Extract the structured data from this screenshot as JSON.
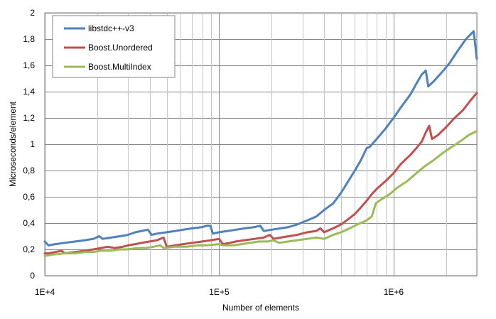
{
  "chart_data": {
    "type": "line",
    "xlabel": "Number of elements",
    "ylabel": "Microseconds/element",
    "xscale": "log",
    "xlim": [
      10000,
      3000000
    ],
    "ylim": [
      0,
      2
    ],
    "x_tick_labels": [
      {
        "value": 10000,
        "label": "1E+4"
      },
      {
        "value": 100000,
        "label": "1E+5"
      },
      {
        "value": 1000000,
        "label": "1E+6"
      }
    ],
    "y_tick_labels": [
      {
        "value": 0,
        "label": "0"
      },
      {
        "value": 0.2,
        "label": "0,2"
      },
      {
        "value": 0.4,
        "label": "0,4"
      },
      {
        "value": 0.6,
        "label": "0,6"
      },
      {
        "value": 0.8,
        "label": "0,8"
      },
      {
        "value": 1.0,
        "label": "1"
      },
      {
        "value": 1.2,
        "label": "1,2"
      },
      {
        "value": 1.4,
        "label": "1,4"
      },
      {
        "value": 1.6,
        "label": "1,6"
      },
      {
        "value": 1.8,
        "label": "1,8"
      },
      {
        "value": 2.0,
        "label": "2"
      }
    ],
    "grid": true,
    "legend_position": "top-left",
    "series": [
      {
        "name": "libstdc++-v3",
        "color": "#4f81bd",
        "points": [
          [
            10000,
            0.26
          ],
          [
            10500,
            0.23
          ],
          [
            11500,
            0.24
          ],
          [
            13000,
            0.25
          ],
          [
            15000,
            0.26
          ],
          [
            17000,
            0.27
          ],
          [
            19000,
            0.28
          ],
          [
            20500,
            0.3
          ],
          [
            21500,
            0.28
          ],
          [
            24000,
            0.29
          ],
          [
            27000,
            0.3
          ],
          [
            30000,
            0.31
          ],
          [
            33000,
            0.33
          ],
          [
            36000,
            0.34
          ],
          [
            39000,
            0.35
          ],
          [
            41000,
            0.31
          ],
          [
            44000,
            0.32
          ],
          [
            50000,
            0.33
          ],
          [
            56000,
            0.34
          ],
          [
            62000,
            0.35
          ],
          [
            70000,
            0.36
          ],
          [
            80000,
            0.37
          ],
          [
            85000,
            0.38
          ],
          [
            89000,
            0.38
          ],
          [
            92000,
            0.32
          ],
          [
            100000,
            0.33
          ],
          [
            112000,
            0.34
          ],
          [
            125000,
            0.35
          ],
          [
            140000,
            0.36
          ],
          [
            160000,
            0.37
          ],
          [
            172000,
            0.38
          ],
          [
            180000,
            0.34
          ],
          [
            200000,
            0.35
          ],
          [
            225000,
            0.36
          ],
          [
            250000,
            0.37
          ],
          [
            280000,
            0.39
          ],
          [
            320000,
            0.42
          ],
          [
            360000,
            0.45
          ],
          [
            400000,
            0.5
          ],
          [
            450000,
            0.55
          ],
          [
            500000,
            0.63
          ],
          [
            550000,
            0.72
          ],
          [
            600000,
            0.8
          ],
          [
            650000,
            0.88
          ],
          [
            700000,
            0.97
          ],
          [
            730000,
            0.98
          ],
          [
            800000,
            1.04
          ],
          [
            900000,
            1.12
          ],
          [
            1000000,
            1.2
          ],
          [
            1100000,
            1.28
          ],
          [
            1250000,
            1.38
          ],
          [
            1350000,
            1.46
          ],
          [
            1450000,
            1.53
          ],
          [
            1530000,
            1.56
          ],
          [
            1580000,
            1.44
          ],
          [
            1700000,
            1.48
          ],
          [
            1900000,
            1.55
          ],
          [
            2100000,
            1.62
          ],
          [
            2300000,
            1.7
          ],
          [
            2600000,
            1.8
          ],
          [
            2880000,
            1.86
          ],
          [
            3000000,
            1.65
          ]
        ]
      },
      {
        "name": "Boost.Unordered",
        "color": "#c0504d",
        "points": [
          [
            10000,
            0.17
          ],
          [
            10500,
            0.17
          ],
          [
            11500,
            0.18
          ],
          [
            12500,
            0.19
          ],
          [
            13000,
            0.17
          ],
          [
            15000,
            0.18
          ],
          [
            17000,
            0.19
          ],
          [
            19000,
            0.2
          ],
          [
            21000,
            0.21
          ],
          [
            23000,
            0.22
          ],
          [
            25000,
            0.21
          ],
          [
            28000,
            0.22
          ],
          [
            30000,
            0.23
          ],
          [
            33000,
            0.24
          ],
          [
            36000,
            0.25
          ],
          [
            40000,
            0.26
          ],
          [
            44000,
            0.27
          ],
          [
            48000,
            0.29
          ],
          [
            50000,
            0.22
          ],
          [
            56000,
            0.23
          ],
          [
            62000,
            0.24
          ],
          [
            70000,
            0.25
          ],
          [
            80000,
            0.26
          ],
          [
            90000,
            0.27
          ],
          [
            100000,
            0.28
          ],
          [
            105000,
            0.24
          ],
          [
            115000,
            0.25
          ],
          [
            125000,
            0.26
          ],
          [
            140000,
            0.27
          ],
          [
            160000,
            0.28
          ],
          [
            180000,
            0.29
          ],
          [
            195000,
            0.31
          ],
          [
            205000,
            0.28
          ],
          [
            225000,
            0.29
          ],
          [
            250000,
            0.3
          ],
          [
            280000,
            0.31
          ],
          [
            320000,
            0.33
          ],
          [
            360000,
            0.34
          ],
          [
            380000,
            0.36
          ],
          [
            400000,
            0.33
          ],
          [
            450000,
            0.36
          ],
          [
            500000,
            0.39
          ],
          [
            550000,
            0.43
          ],
          [
            600000,
            0.47
          ],
          [
            650000,
            0.52
          ],
          [
            700000,
            0.57
          ],
          [
            750000,
            0.62
          ],
          [
            800000,
            0.66
          ],
          [
            900000,
            0.72
          ],
          [
            1000000,
            0.78
          ],
          [
            1100000,
            0.85
          ],
          [
            1250000,
            0.92
          ],
          [
            1350000,
            0.97
          ],
          [
            1450000,
            1.02
          ],
          [
            1530000,
            1.09
          ],
          [
            1600000,
            1.14
          ],
          [
            1660000,
            1.04
          ],
          [
            1800000,
            1.07
          ],
          [
            2000000,
            1.13
          ],
          [
            2200000,
            1.19
          ],
          [
            2500000,
            1.26
          ],
          [
            2750000,
            1.33
          ],
          [
            3000000,
            1.39
          ]
        ]
      },
      {
        "name": "Boost.MultiIndex",
        "color": "#9bbb59",
        "points": [
          [
            10000,
            0.15
          ],
          [
            11000,
            0.16
          ],
          [
            13000,
            0.17
          ],
          [
            15000,
            0.17
          ],
          [
            17000,
            0.18
          ],
          [
            19000,
            0.18
          ],
          [
            21000,
            0.19
          ],
          [
            24000,
            0.19
          ],
          [
            27000,
            0.2
          ],
          [
            30000,
            0.2
          ],
          [
            34000,
            0.21
          ],
          [
            38000,
            0.21
          ],
          [
            42000,
            0.22
          ],
          [
            46000,
            0.23
          ],
          [
            48000,
            0.21
          ],
          [
            56000,
            0.22
          ],
          [
            65000,
            0.22
          ],
          [
            75000,
            0.23
          ],
          [
            85000,
            0.23
          ],
          [
            100000,
            0.24
          ],
          [
            105000,
            0.23
          ],
          [
            120000,
            0.23
          ],
          [
            135000,
            0.24
          ],
          [
            150000,
            0.25
          ],
          [
            170000,
            0.26
          ],
          [
            190000,
            0.26
          ],
          [
            205000,
            0.27
          ],
          [
            220000,
            0.25
          ],
          [
            250000,
            0.26
          ],
          [
            280000,
            0.27
          ],
          [
            320000,
            0.28
          ],
          [
            360000,
            0.29
          ],
          [
            400000,
            0.28
          ],
          [
            450000,
            0.31
          ],
          [
            500000,
            0.33
          ],
          [
            560000,
            0.36
          ],
          [
            620000,
            0.39
          ],
          [
            700000,
            0.42
          ],
          [
            750000,
            0.45
          ],
          [
            790000,
            0.55
          ],
          [
            850000,
            0.58
          ],
          [
            950000,
            0.62
          ],
          [
            1050000,
            0.67
          ],
          [
            1200000,
            0.72
          ],
          [
            1350000,
            0.78
          ],
          [
            1500000,
            0.83
          ],
          [
            1700000,
            0.88
          ],
          [
            1900000,
            0.93
          ],
          [
            2100000,
            0.97
          ],
          [
            2400000,
            1.02
          ],
          [
            2700000,
            1.07
          ],
          [
            3000000,
            1.1
          ]
        ]
      }
    ]
  }
}
